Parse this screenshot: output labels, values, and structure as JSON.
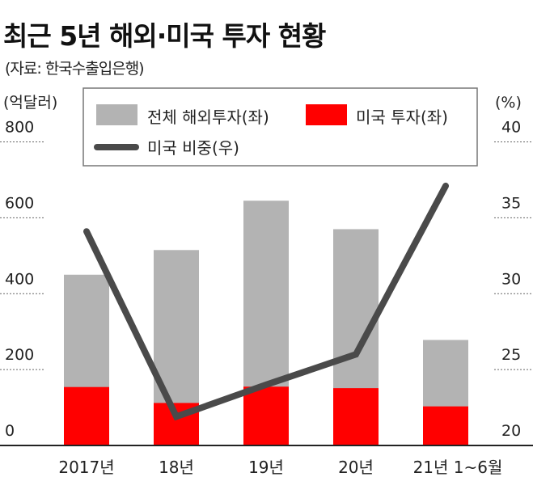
{
  "title": "최근 5년 해외·미국 투자 현황",
  "source": "(자료: 한국수출입은행)",
  "chart_data": {
    "type": "bar",
    "title": "최근 5년 해외·미국 투자 현황",
    "categories": [
      "2017년",
      "18년",
      "19년",
      "20년",
      "21년 1~6월"
    ],
    "series": [
      {
        "name": "전체 해외투자(좌)",
        "type": "bar",
        "axis": "left",
        "color": "#b3b3b3",
        "values": [
          450,
          515,
          645,
          570,
          278
        ]
      },
      {
        "name": "미국 투자(좌)",
        "type": "bar",
        "axis": "left",
        "color": "#ff0000",
        "values": [
          154,
          112,
          155,
          151,
          103
        ]
      },
      {
        "name": "미국 비중(우)",
        "type": "line",
        "axis": "right",
        "color": "#4a4a4a",
        "values": [
          34.1,
          21.9,
          24.0,
          26.0,
          37.1
        ]
      }
    ],
    "ylabel": "(억달러)",
    "ylabel_right": "(%)",
    "ylim": [
      0,
      800
    ],
    "ylim_right": [
      20,
      40
    ],
    "yticks": [
      "0",
      "200",
      "400",
      "600",
      "800"
    ],
    "yticks_right": [
      "20",
      "25",
      "30",
      "35",
      "40"
    ],
    "legend_placement": "top"
  }
}
